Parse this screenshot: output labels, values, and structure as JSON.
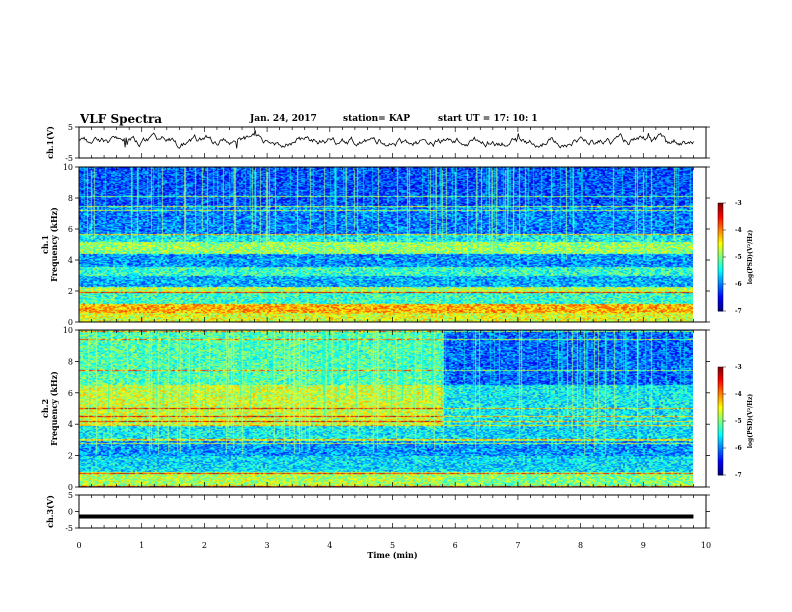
{
  "header": {
    "title": "VLF Spectra",
    "date": "Jan. 24, 2017",
    "station": "station= KAP",
    "start_ut": "start  UT =   17: 10: 1"
  },
  "colors": {
    "colormap": [
      "#000080",
      "#0000ff",
      "#0080ff",
      "#00ffff",
      "#80ff80",
      "#ffff00",
      "#ff8000",
      "#ff0000",
      "#800000"
    ],
    "trace": "#000000"
  },
  "chart_data": [
    {
      "type": "line",
      "id": "ch1-waveform",
      "ylabel": "ch.1(V)",
      "ylim": [
        -5,
        5
      ],
      "yticks": [
        5,
        -5
      ],
      "xlim": [
        0,
        10
      ],
      "x_end_data": 9.8,
      "series": [
        {
          "description_only": false,
          "mean": 0.2,
          "amplitude": 2.0
        }
      ]
    },
    {
      "type": "heatmap",
      "id": "ch1-spectrogram",
      "ylabel": "ch.1\nFrequency (kHz)",
      "ylim": [
        0,
        10
      ],
      "yticks": [
        0,
        2,
        4,
        6,
        8,
        10
      ],
      "xlim": [
        0,
        10
      ],
      "x_end_data": 9.8,
      "colorbar": {
        "label": "log(PSD)(V²/Hz)",
        "range": [
          -7,
          -3
        ],
        "ticks": [
          -3,
          -4,
          -5,
          -6,
          -7
        ]
      },
      "bands": [
        {
          "f0": 0.0,
          "f1": 0.6,
          "level": -4.6
        },
        {
          "f0": 0.6,
          "f1": 1.2,
          "level": -4.2
        },
        {
          "f0": 1.2,
          "f1": 1.9,
          "level": -5.3
        },
        {
          "f0": 1.9,
          "f1": 2.3,
          "level": -4.8
        },
        {
          "f0": 2.3,
          "f1": 3.0,
          "level": -5.8
        },
        {
          "f0": 3.0,
          "f1": 3.6,
          "level": -5.3
        },
        {
          "f0": 3.6,
          "f1": 4.4,
          "level": -5.9
        },
        {
          "f0": 4.4,
          "f1": 5.2,
          "level": -4.9
        },
        {
          "f0": 5.2,
          "f1": 5.7,
          "level": -5.5
        },
        {
          "f0": 5.7,
          "f1": 7.5,
          "level": -6.0
        },
        {
          "f0": 7.5,
          "f1": 10.0,
          "level": -6.2
        }
      ]
    },
    {
      "type": "heatmap",
      "id": "ch2-spectrogram",
      "ylabel": "ch.2\nFrequency (kHz)",
      "ylim": [
        0,
        10
      ],
      "yticks": [
        0,
        2,
        4,
        6,
        8,
        10
      ],
      "xlim": [
        0,
        10
      ],
      "x_end_data": 9.8,
      "transition_time": 5.8,
      "colorbar": {
        "label": "log(PSD)(V²/Hz)",
        "range": [
          -7,
          -3
        ],
        "ticks": [
          -3,
          -4,
          -5,
          -6,
          -7
        ]
      },
      "bands_before": [
        {
          "f0": 0.0,
          "f1": 1.0,
          "level": -4.8
        },
        {
          "f0": 1.0,
          "f1": 2.0,
          "level": -5.6
        },
        {
          "f0": 2.0,
          "f1": 3.0,
          "level": -5.9
        },
        {
          "f0": 3.0,
          "f1": 4.0,
          "level": -5.5
        },
        {
          "f0": 4.0,
          "f1": 6.5,
          "level": -4.7
        },
        {
          "f0": 6.5,
          "f1": 10.0,
          "level": -5.2
        }
      ],
      "bands_after": [
        {
          "f0": 0.0,
          "f1": 1.0,
          "level": -5.0
        },
        {
          "f0": 1.0,
          "f1": 2.0,
          "level": -5.6
        },
        {
          "f0": 2.0,
          "f1": 3.0,
          "level": -5.9
        },
        {
          "f0": 3.0,
          "f1": 4.0,
          "level": -5.6
        },
        {
          "f0": 4.0,
          "f1": 6.5,
          "level": -5.5
        },
        {
          "f0": 6.5,
          "f1": 10.0,
          "level": -6.1
        }
      ]
    },
    {
      "type": "line",
      "id": "ch3-waveform",
      "ylabel": "ch.3(V)",
      "ylim": [
        -5,
        5
      ],
      "yticks": [
        5,
        0,
        -5
      ],
      "xlim": [
        0,
        10
      ],
      "x_end_data": 9.8,
      "series": [
        {
          "constant": -1.5
        }
      ]
    }
  ],
  "xaxis": {
    "label": "Time  (min)",
    "ticks": [
      0,
      1,
      2,
      3,
      4,
      5,
      6,
      7,
      8,
      9,
      10
    ]
  }
}
